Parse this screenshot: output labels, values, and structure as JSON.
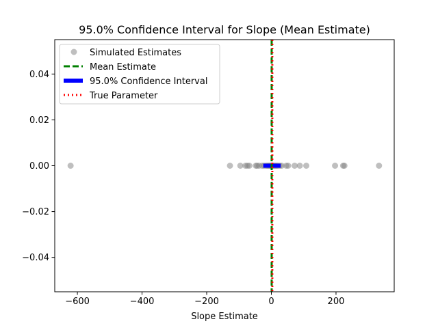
{
  "chart_data": {
    "type": "scatter",
    "title": "95.0% Confidence Interval for Slope (Mean Estimate)",
    "xlabel": "Slope Estimate",
    "ylabel": "",
    "xlim": [
      -670,
      380
    ],
    "ylim": [
      -0.055,
      0.055
    ],
    "x_ticks": [
      -600,
      -400,
      -200,
      0,
      200
    ],
    "y_ticks": [
      -0.04,
      -0.02,
      0.0,
      0.02,
      0.04
    ],
    "x_tick_labels": [
      "−600",
      "−400",
      "−200",
      "0",
      "200"
    ],
    "y_tick_labels": [
      "−0.04",
      "−0.02",
      "0.00",
      "0.02",
      "0.04"
    ],
    "grid": false,
    "legend_position": "top-left",
    "series": [
      {
        "name": "Simulated Estimates",
        "kind": "points",
        "color": "#808080",
        "x": [
          -621,
          -128,
          -96,
          -80,
          -74,
          -68,
          -48,
          -44,
          -38,
          -28,
          -22,
          -16,
          -12,
          -8,
          -4,
          -2,
          2,
          4,
          8,
          12,
          16,
          20,
          26,
          32,
          46,
          52,
          72,
          88,
          108,
          197,
          222,
          226,
          333
        ],
        "y": [
          0,
          0,
          0,
          0,
          0,
          0,
          0,
          0,
          0,
          0,
          0,
          0,
          0,
          0,
          0,
          0,
          0,
          0,
          0,
          0,
          0,
          0,
          0,
          0,
          0,
          0,
          0,
          0,
          0,
          0,
          0,
          0,
          0
        ]
      },
      {
        "name": "Mean Estimate",
        "kind": "vline",
        "color": "#008000",
        "x": 1
      },
      {
        "name": "95.0% Confidence Interval",
        "kind": "hsegment",
        "color": "#0000ff",
        "x": [
          -25,
          29
        ],
        "y": 0
      },
      {
        "name": "True Parameter",
        "kind": "vline",
        "color": "#ff0000",
        "x": 3
      }
    ]
  }
}
